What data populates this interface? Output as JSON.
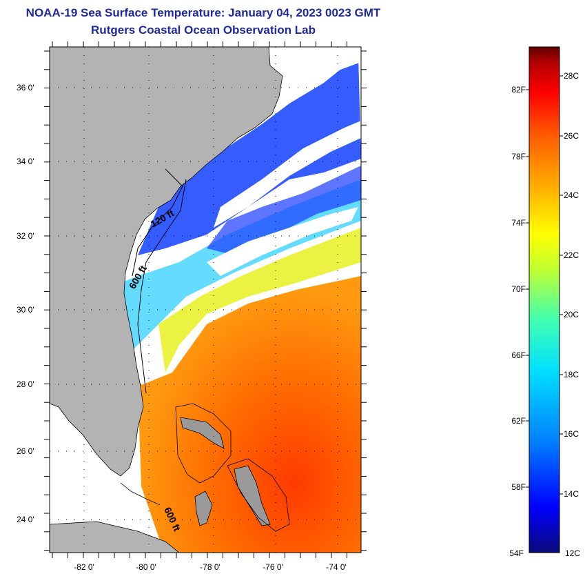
{
  "title": {
    "line1": "NOAA-19 Sea Surface Temperature:  January 04, 2023 0023 GMT",
    "line2": "Rutgers Coastal Ocean Observation Lab"
  },
  "map": {
    "lat_labels": [
      "36 0'",
      "34 0'",
      "32 0'",
      "30 0'",
      "28 0'",
      "26 0'",
      "24 0'"
    ],
    "lon_labels": [
      "-82 0'",
      "-80 0'",
      "-78 0'",
      "-76 0'",
      "-74 0'"
    ],
    "contour_labels": [
      "120 ft",
      "600 ft",
      "600 ft"
    ],
    "colors": {
      "land": "#b3b3b3",
      "cloud": "#ffffff",
      "coast": "#000000"
    }
  },
  "colorbar": {
    "fahrenheit_labels": [
      "82F",
      "78F",
      "74F",
      "70F",
      "66F",
      "62F",
      "58F",
      "54F"
    ],
    "celsius_labels": [
      "28C",
      "26C",
      "24C",
      "22C",
      "20C",
      "18C",
      "16C",
      "14C",
      "12C"
    ],
    "stops": [
      "#0a0a7a",
      "#0000ff",
      "#0080ff",
      "#00e0ff",
      "#40ffb0",
      "#c0ff30",
      "#ffff00",
      "#ffb000",
      "#ff6000",
      "#ff0000",
      "#b00000",
      "#600000"
    ]
  }
}
